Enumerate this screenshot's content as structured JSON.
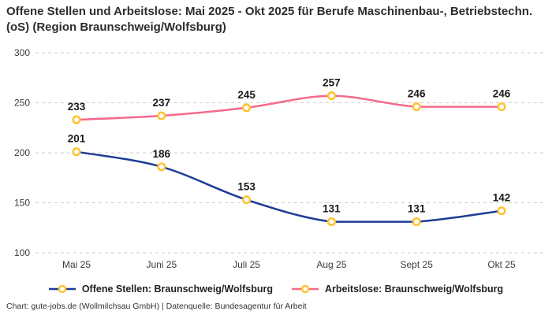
{
  "attribution": "Chart: gute-jobs.de (Wollmilchsau GmbH) | Datenquelle: Bundesagentur für Arbeit",
  "colors": {
    "open_positions_line": "#1E3C96",
    "unemployed_line": "#F6698C",
    "marker_ring": "#FFC332",
    "marker_fill": "#FFFFFF",
    "gridline": "#CFCFCF",
    "axis_text": "#3A3A3A",
    "value_label_text": "#1A1A1A"
  },
  "chart_data": {
    "type": "line",
    "title": "Offene Stellen und Arbeitslose: Mai 2025 - Okt 2025 für Berufe Maschinenbau-, Betriebstechn.(oS) (Region Braunschweig/Wolfsburg)",
    "categories": [
      "Mai 25",
      "Juni 25",
      "Juli 25",
      "Aug 25",
      "Sept 25",
      "Okt 25"
    ],
    "series": [
      {
        "name": "Offene Stellen: Braunschweig/Wolfsburg",
        "values": [
          201,
          186,
          153,
          131,
          131,
          142
        ],
        "color": "#1E3C96"
      },
      {
        "name": "Arbeitslose: Braunschweig/Wolfsburg",
        "values": [
          233,
          237,
          245,
          257,
          246,
          246
        ],
        "color": "#F6698C"
      }
    ],
    "xlabel": "",
    "ylabel": "",
    "ylim": [
      100,
      300
    ],
    "yticks": [
      100,
      150,
      200,
      250,
      300
    ],
    "grid": true,
    "grid_style": "dashed",
    "legend_position": "bottom",
    "marker": "open-circle",
    "data_labels": true
  }
}
